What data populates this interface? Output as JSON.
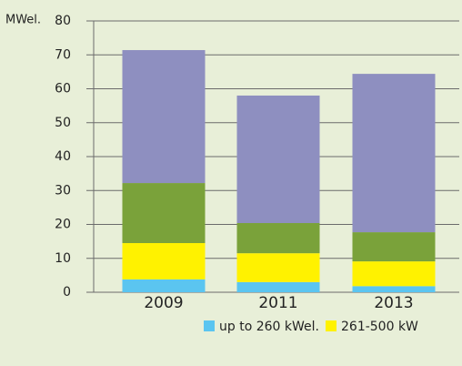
{
  "chart_data": {
    "type": "stacked_bar",
    "y_label": "MWel.",
    "categories": [
      "2009",
      "2011",
      "2013"
    ],
    "series": [
      {
        "name": "up to 260 kWel.",
        "color": "#5bc5f0",
        "values": [
          3.8,
          3,
          1.8
        ]
      },
      {
        "name": "261-500 kW",
        "color": "#fff200",
        "values": [
          10.7,
          8.5,
          7.3
        ]
      },
      {
        "color": "#7aa23a",
        "values": [
          17.7,
          8.9,
          8.6
        ]
      },
      {
        "color": "#8e8fc0",
        "values": [
          39.2,
          37.6,
          46.7
        ]
      }
    ],
    "ylim": [
      0,
      80
    ],
    "yticks": [
      0,
      10,
      20,
      30,
      40,
      50,
      60,
      70,
      80
    ],
    "grid": true
  }
}
